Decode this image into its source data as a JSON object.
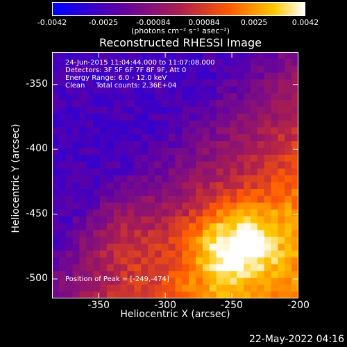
{
  "chart_data": {
    "type": "heatmap",
    "title": "Reconstructed RHESSI Image",
    "xlabel": "Heliocentric X (arcsec)",
    "ylabel": "Heliocentric Y (arcsec)",
    "xlim": [
      -385,
      -200
    ],
    "ylim": [
      -515,
      -325
    ],
    "x_ticks": [
      "-350",
      "-300",
      "-250",
      "-200"
    ],
    "x_tick_values": [
      -350,
      -300,
      -250,
      -200
    ],
    "y_ticks": [
      "-350",
      "-400",
      "-450",
      "-500"
    ],
    "y_tick_values": [
      -350,
      -400,
      -450,
      -500
    ],
    "colorbar": {
      "ticks": [
        "-0.0042",
        "-0.0025",
        "-0.00084",
        "0.00084",
        "0.0025",
        "0.0042"
      ],
      "unit_label": "(photons cm⁻² s⁻¹ asec⁻²)",
      "range": [
        -0.0042,
        0.0042
      ]
    },
    "annotations": {
      "time_range": "24-Jun-2015 11:04:44.000 to 11:07:08.000",
      "detectors": "Detectors: 3F 5F 6F 7F 8F 9F, Att 0",
      "energy": "Energy Range: 6.0 - 12.0 keV",
      "method": "Clean     Total counts: 2.36E+04",
      "peak": "Position of Peak = [-249,-474]"
    },
    "peak": [
      -249,
      -474
    ],
    "colors": {
      "low": "#0000ff",
      "mid_low": "#5a00a8",
      "mid": "#b0205a",
      "high": "#ff6a00",
      "max": "#ffffff"
    }
  },
  "footer": {
    "date": "22-May-2022 04:16"
  }
}
